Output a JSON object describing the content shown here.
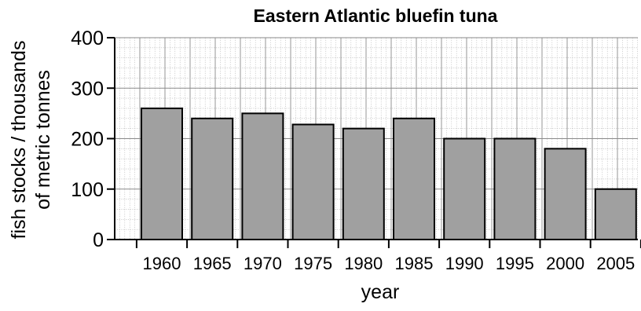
{
  "chart_data": {
    "type": "bar",
    "title": "Eastern Atlantic bluefin tuna",
    "xlabel": "year",
    "ylabel_line1": "fish stocks / thousands",
    "ylabel_line2": "of metric tonnes",
    "categories": [
      "1960",
      "1965",
      "1970",
      "1975",
      "1980",
      "1985",
      "1990",
      "1995",
      "2000",
      "2005"
    ],
    "values": [
      260,
      240,
      250,
      228,
      220,
      240,
      200,
      200,
      180,
      100
    ],
    "ylim": [
      0,
      400
    ],
    "yticks": [
      "0",
      "100",
      "200",
      "300",
      "400"
    ],
    "grid": true,
    "bar_color": "#a0a0a0"
  }
}
